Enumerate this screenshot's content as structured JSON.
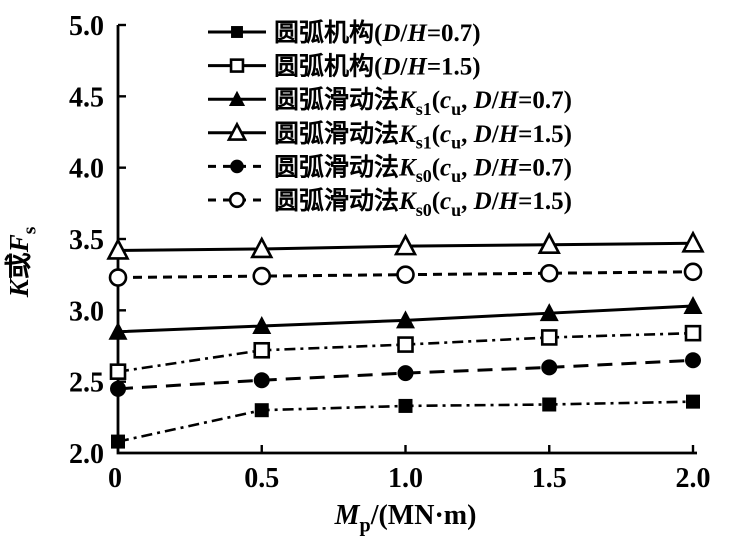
{
  "colors": {
    "ink": "#000000",
    "paper": "#ffffff"
  },
  "chart_data": {
    "type": "line",
    "x": [
      0,
      0.5,
      1.0,
      1.5,
      2.0
    ],
    "xlim": [
      0,
      2.0
    ],
    "ylim": [
      2.0,
      5.0
    ],
    "x_tick_labels": [
      "0",
      "0.5",
      "1.0",
      "1.5",
      "2.0"
    ],
    "y_tick_labels": [
      "2.0",
      "2.5",
      "3.0",
      "3.5",
      "4.0",
      "4.5",
      "5.0"
    ],
    "grid": false,
    "legend_position": "inside-top",
    "xlabel": "Mp/(MN·m)",
    "xlabel_parts": [
      {
        "t": "M",
        "style": "italic"
      },
      {
        "t": "p",
        "style": "sub"
      },
      {
        "t": "/(",
        "style": "normal"
      },
      {
        "t": "MN·m",
        "style": "bold"
      },
      {
        "t": ")",
        "style": "normal"
      }
    ],
    "ylabel": "K或Fs",
    "ylabel_parts": [
      {
        "t": "K",
        "style": "italic"
      },
      {
        "t": "或",
        "style": "normal"
      },
      {
        "t": "F",
        "style": "italic"
      },
      {
        "t": "s",
        "style": "sub"
      }
    ],
    "series": [
      {
        "name": "圆弧机构(D/H=0.7)",
        "name_parts": [
          {
            "t": "圆弧机构",
            "style": "normal"
          },
          {
            "t": "(",
            "style": "normal"
          },
          {
            "t": "D",
            "style": "italic"
          },
          {
            "t": "/",
            "style": "normal"
          },
          {
            "t": "H",
            "style": "italic"
          },
          {
            "t": "=0.7)",
            "style": "normal"
          }
        ],
        "marker": "square-filled",
        "legend_line": "solid",
        "plot_line": "dashdot",
        "values": [
          2.08,
          2.3,
          2.33,
          2.34,
          2.36
        ]
      },
      {
        "name": "圆弧机构(D/H=1.5)",
        "name_parts": [
          {
            "t": "圆弧机构",
            "style": "normal"
          },
          {
            "t": "(",
            "style": "normal"
          },
          {
            "t": "D",
            "style": "italic"
          },
          {
            "t": "/",
            "style": "normal"
          },
          {
            "t": "H",
            "style": "italic"
          },
          {
            "t": "=1.5)",
            "style": "normal"
          }
        ],
        "marker": "square-open",
        "legend_line": "solid",
        "plot_line": "dashdot",
        "values": [
          2.57,
          2.72,
          2.76,
          2.81,
          2.84
        ]
      },
      {
        "name": "圆弧滑动法Ks1(cu, D/H=0.7)",
        "name_parts": [
          {
            "t": "圆弧滑动法",
            "style": "normal"
          },
          {
            "t": "K",
            "style": "italic"
          },
          {
            "t": "s1",
            "style": "sub"
          },
          {
            "t": "(",
            "style": "normal"
          },
          {
            "t": "c",
            "style": "italic"
          },
          {
            "t": "u",
            "style": "sub"
          },
          {
            "t": ", ",
            "style": "normal"
          },
          {
            "t": "D",
            "style": "italic"
          },
          {
            "t": "/",
            "style": "normal"
          },
          {
            "t": "H",
            "style": "italic"
          },
          {
            "t": "=0.7)",
            "style": "normal"
          }
        ],
        "marker": "triangle-filled",
        "legend_line": "solid",
        "plot_line": "solid",
        "values": [
          2.85,
          2.89,
          2.93,
          2.98,
          3.03
        ]
      },
      {
        "name": "圆弧滑动法Ks1(cu, D/H=1.5)",
        "name_parts": [
          {
            "t": "圆弧滑动法",
            "style": "normal"
          },
          {
            "t": "K",
            "style": "italic"
          },
          {
            "t": "s1",
            "style": "sub"
          },
          {
            "t": "(",
            "style": "normal"
          },
          {
            "t": "c",
            "style": "italic"
          },
          {
            "t": "u",
            "style": "sub"
          },
          {
            "t": ", ",
            "style": "normal"
          },
          {
            "t": "D",
            "style": "italic"
          },
          {
            "t": "/",
            "style": "normal"
          },
          {
            "t": "H",
            "style": "italic"
          },
          {
            "t": "=1.5)",
            "style": "normal"
          }
        ],
        "marker": "triangle-open",
        "legend_line": "solid",
        "plot_line": "solid",
        "values": [
          3.42,
          3.43,
          3.45,
          3.46,
          3.47
        ]
      },
      {
        "name": "圆弧滑动法Ks0(cu, D/H=0.7)",
        "name_parts": [
          {
            "t": "圆弧滑动法",
            "style": "normal"
          },
          {
            "t": "K",
            "style": "italic"
          },
          {
            "t": "s0",
            "style": "sub"
          },
          {
            "t": "(",
            "style": "normal"
          },
          {
            "t": "c",
            "style": "italic"
          },
          {
            "t": "u",
            "style": "sub"
          },
          {
            "t": ", ",
            "style": "normal"
          },
          {
            "t": "D",
            "style": "italic"
          },
          {
            "t": "/",
            "style": "normal"
          },
          {
            "t": "H",
            "style": "italic"
          },
          {
            "t": "=0.7)",
            "style": "normal"
          }
        ],
        "marker": "circle-filled",
        "legend_line": "dashed",
        "plot_line": "longdash",
        "values": [
          2.45,
          2.51,
          2.56,
          2.6,
          2.65
        ]
      },
      {
        "name": "圆弧滑动法Ks0(cu, D/H=1.5)",
        "name_parts": [
          {
            "t": "圆弧滑动法",
            "style": "normal"
          },
          {
            "t": "K",
            "style": "italic"
          },
          {
            "t": "s0",
            "style": "sub"
          },
          {
            "t": "(",
            "style": "normal"
          },
          {
            "t": "c",
            "style": "italic"
          },
          {
            "t": "u",
            "style": "sub"
          },
          {
            "t": ", ",
            "style": "normal"
          },
          {
            "t": "D",
            "style": "italic"
          },
          {
            "t": "/",
            "style": "normal"
          },
          {
            "t": "H",
            "style": "italic"
          },
          {
            "t": "=1.5)",
            "style": "normal"
          }
        ],
        "marker": "circle-open",
        "legend_line": "dashed",
        "plot_line": "dashed",
        "values": [
          3.23,
          3.24,
          3.25,
          3.26,
          3.27
        ]
      }
    ]
  }
}
